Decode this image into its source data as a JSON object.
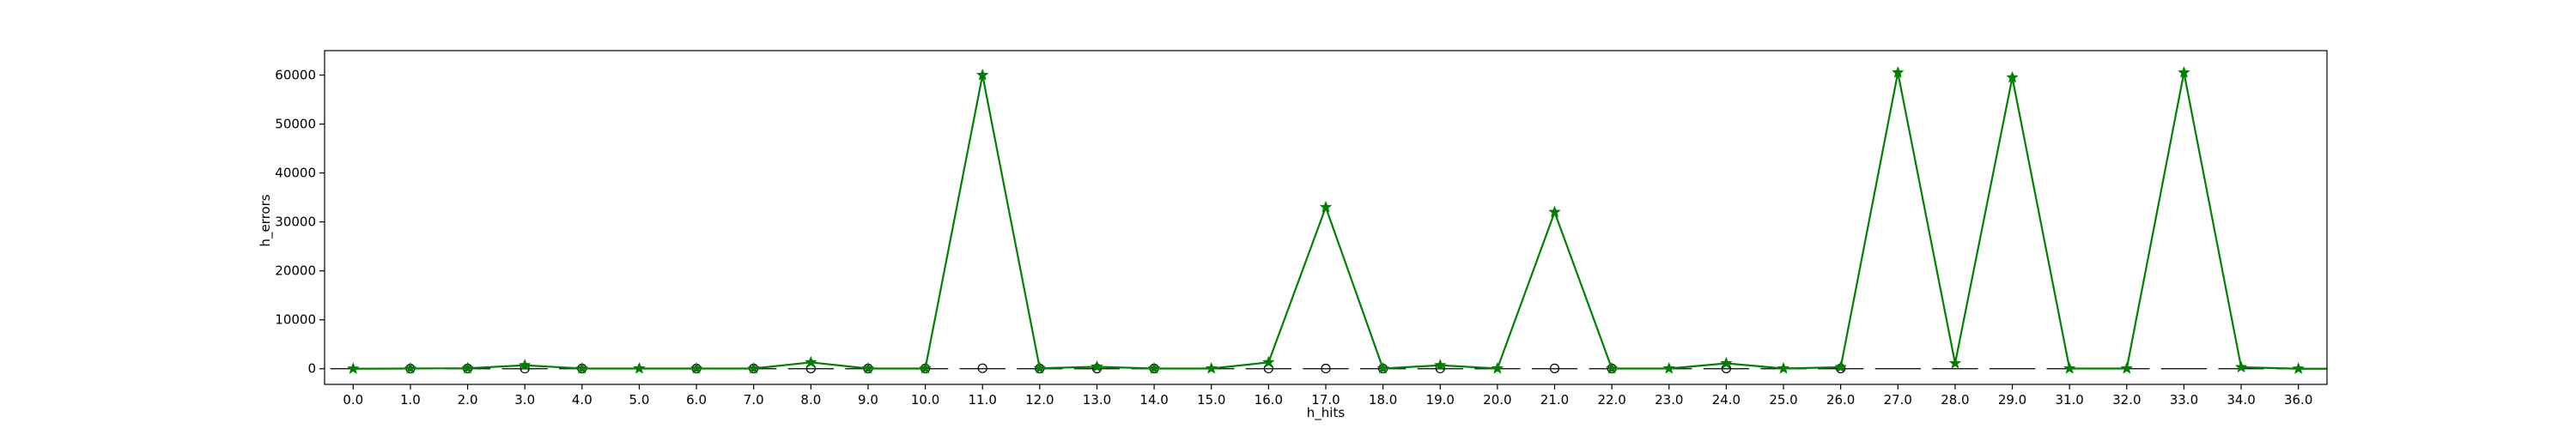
{
  "chart_data": {
    "type": "line",
    "title": "",
    "xlabel": "h_hits",
    "ylabel": "h_errors",
    "categories": [
      "0.0",
      "1.0",
      "2.0",
      "3.0",
      "4.0",
      "5.0",
      "6.0",
      "7.0",
      "8.0",
      "9.0",
      "10.0",
      "11.0",
      "12.0",
      "13.0",
      "14.0",
      "15.0",
      "16.0",
      "17.0",
      "18.0",
      "19.0",
      "20.0",
      "21.0",
      "22.0",
      "23.0",
      "24.0",
      "25.0",
      "26.0",
      "27.0",
      "28.0",
      "29.0",
      "31.0",
      "32.0",
      "33.0",
      "34.0",
      "36.0"
    ],
    "yticks": [
      0,
      10000,
      20000,
      30000,
      40000,
      50000,
      60000
    ],
    "ytick_labels": [
      "0",
      "10000",
      "20000",
      "30000",
      "40000",
      "50000",
      "60000"
    ],
    "ylim": [
      -3200,
      65000
    ],
    "grid": false,
    "legend": "none",
    "series": [
      {
        "marker": "star",
        "color": "#008000",
        "values": [
          0,
          50,
          100,
          700,
          50,
          50,
          50,
          50,
          1300,
          50,
          50,
          60000,
          100,
          400,
          50,
          50,
          1300,
          33000,
          50,
          700,
          50,
          32000,
          50,
          50,
          1100,
          50,
          300,
          60500,
          1100,
          59500,
          50,
          50,
          60500,
          300,
          0
        ]
      }
    ],
    "boxes": {
      "color": "#000000",
      "outlier_marker": "circle",
      "medians": [
        0,
        0,
        0,
        0,
        0,
        0,
        0,
        0,
        0,
        0,
        0,
        0,
        0,
        0,
        0,
        0,
        0,
        0,
        0,
        0,
        0,
        0,
        0,
        0,
        0,
        0,
        0,
        0,
        0,
        0,
        0,
        0,
        0,
        0,
        0
      ],
      "outliers": [
        {
          "category": "1.0",
          "value": 30
        },
        {
          "category": "2.0",
          "value": 50
        },
        {
          "category": "3.0",
          "value": 30
        },
        {
          "category": "4.0",
          "value": 40
        },
        {
          "category": "6.0",
          "value": 40
        },
        {
          "category": "7.0",
          "value": 40
        },
        {
          "category": "8.0",
          "value": 40
        },
        {
          "category": "9.0",
          "value": 40
        },
        {
          "category": "10.0",
          "value": 40
        },
        {
          "category": "11.0",
          "value": 100
        },
        {
          "category": "12.0",
          "value": 40
        },
        {
          "category": "13.0",
          "value": 40
        },
        {
          "category": "14.0",
          "value": 40
        },
        {
          "category": "16.0",
          "value": 50
        },
        {
          "category": "17.0",
          "value": 50
        },
        {
          "category": "18.0",
          "value": 30
        },
        {
          "category": "19.0",
          "value": 50
        },
        {
          "category": "21.0",
          "value": 60
        },
        {
          "category": "22.0",
          "value": 40
        },
        {
          "category": "24.0",
          "value": 60
        },
        {
          "category": "26.0",
          "value": 40
        }
      ]
    }
  }
}
